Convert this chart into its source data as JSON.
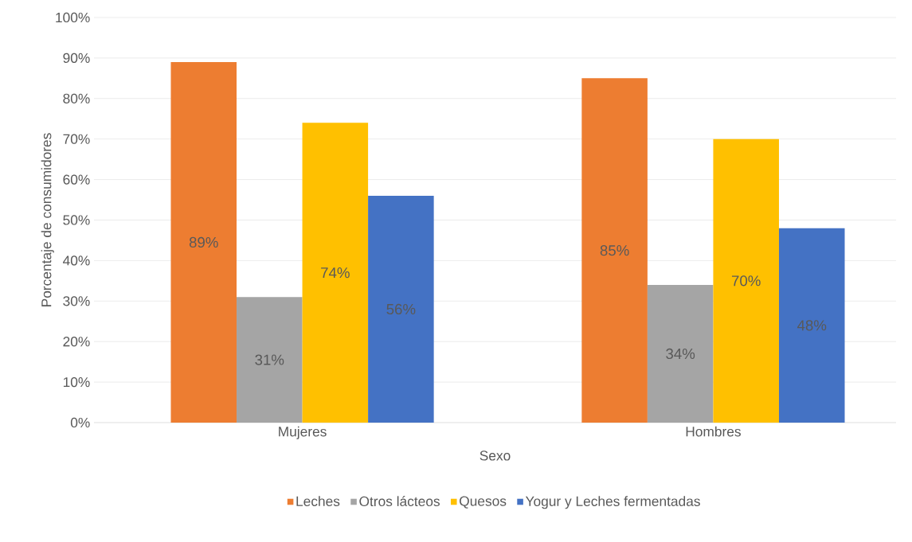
{
  "chart_data": {
    "type": "bar",
    "xlabel": "Sexo",
    "ylabel": "Porcentaje de consumidores",
    "categories": [
      "Mujeres",
      "Hombres"
    ],
    "series": [
      {
        "name": "Leches",
        "color": "#ed7d31",
        "values": [
          89,
          85
        ],
        "value_labels": [
          "89%",
          "85%"
        ]
      },
      {
        "name": "Otros lácteos",
        "color": "#a5a5a5",
        "values": [
          31,
          34
        ],
        "value_labels": [
          "31%",
          "34%"
        ]
      },
      {
        "name": "Quesos",
        "color": "#ffc000",
        "values": [
          74,
          70
        ],
        "value_labels": [
          "74%",
          "70%"
        ]
      },
      {
        "name": "Yogur y Leches fermentadas",
        "color": "#4472c4",
        "values": [
          56,
          48
        ],
        "value_labels": [
          "56%",
          "48%"
        ]
      }
    ],
    "ylim": [
      0,
      100
    ],
    "yticks": [
      {
        "value": 0,
        "label": "0%"
      },
      {
        "value": 10,
        "label": "10%"
      },
      {
        "value": 20,
        "label": "20%"
      },
      {
        "value": 30,
        "label": "30%"
      },
      {
        "value": 40,
        "label": "40%"
      },
      {
        "value": 50,
        "label": "50%"
      },
      {
        "value": 60,
        "label": "60%"
      },
      {
        "value": 70,
        "label": "70%"
      },
      {
        "value": 80,
        "label": "80%"
      },
      {
        "value": 90,
        "label": "90%"
      },
      {
        "value": 100,
        "label": "100%"
      }
    ],
    "grid": "y",
    "legend": "bottom"
  }
}
